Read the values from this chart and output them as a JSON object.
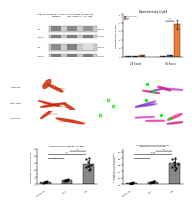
{
  "background_color": "#ffffff",
  "title_a": "Intensity of p62 at 24 and 96 hours after tau seeding",
  "title_b": "Band Intensity of p62",
  "title_d": "Fluorescence Intensity of p62",
  "title_e": "Correlation of CP13 and p62\nintensity per neurone",
  "panel_b": {
    "groups": [
      "24 hours",
      "96 hours"
    ],
    "categories": [
      "Uninfect. cell",
      "sTau",
      "iTau"
    ],
    "colors": [
      "#888888",
      "#4472c4",
      "#ed7d31"
    ],
    "data_24h": [
      0.08,
      0.1,
      0.15
    ],
    "data_96h": [
      0.1,
      0.2,
      3.8
    ],
    "errors_24h": [
      0.02,
      0.02,
      0.03
    ],
    "errors_96h": [
      0.02,
      0.04,
      0.5
    ],
    "ylabel": "Band Intensity of p62",
    "ylim": [
      0,
      5.0
    ]
  },
  "panel_d": {
    "categories": [
      "Naïve cell",
      "sTau",
      "iTau"
    ],
    "values": [
      0.35,
      0.55,
      2.9
    ],
    "errors": [
      0.08,
      0.12,
      0.45
    ],
    "bar_color": "#888888",
    "ylabel": "Fluorescence Intensity of p62",
    "ylim": [
      0,
      5.0
    ],
    "sig": [
      [
        0,
        1,
        "ns"
      ],
      [
        0,
        2,
        "**"
      ],
      [
        1,
        2,
        "*"
      ]
    ]
  },
  "panel_e": {
    "categories": [
      "Naïve cell",
      "sTau",
      "iTau"
    ],
    "values": [
      0.04,
      0.07,
      0.65
    ],
    "errors": [
      0.01,
      0.02,
      0.12
    ],
    "bar_color": "#888888",
    "ylabel": "Correlation of CP13 and p62\nintensity per neurone",
    "ylim": [
      0,
      1.1
    ],
    "sig": [
      [
        0,
        1,
        "ns"
      ],
      [
        0,
        2,
        "****"
      ],
      [
        1,
        2,
        "**"
      ]
    ]
  },
  "wb": {
    "col_labels": [
      "Naïve cell",
      "sTau, 40ng",
      "iTau, 40ng"
    ],
    "blot1_label": "p62",
    "blot1_loading": "Betaactin",
    "blot2_label": "p62",
    "blot2_loading": "Betaactin",
    "kda_labels": [
      "62 kDa",
      "37 kDa"
    ],
    "time_labels": [
      "24h",
      "96h"
    ],
    "band_intensities_1": [
      0.6,
      0.55,
      0.5
    ],
    "band_intensities_2": [
      0.55,
      0.6,
      0.15
    ]
  },
  "row_labels_c": [
    "Naïve cell",
    "sTau, 40ng",
    "iTau, 40ng"
  ]
}
